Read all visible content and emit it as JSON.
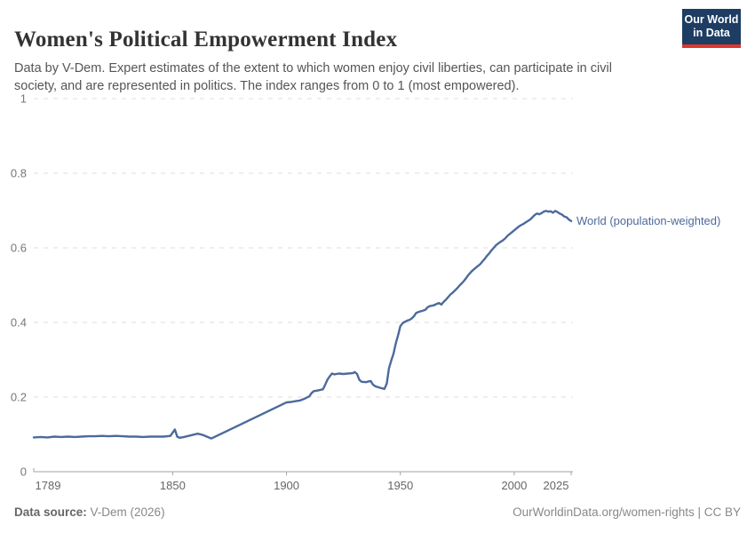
{
  "header": {
    "logo": {
      "line1": "Our World",
      "line2": "in Data"
    }
  },
  "footer": {
    "source_label": "Data source:",
    "source_value": " V-Dem (2026)",
    "credit": "OurWorldinData.org/women-rights | CC BY"
  },
  "colors": {
    "line": "#4C6A9C",
    "series_label": "#4C6A9C",
    "logo_bg": "#1d3d63",
    "logo_red": "#e0352b",
    "gridline": "#dcdcdc",
    "axis": "#a1a1a1"
  },
  "chart_data": {
    "type": "line",
    "title": "Women's Political Empowerment Index",
    "subtitle": "Data by V-Dem. Expert estimates of the extent to which women enjoy civil liberties, can participate in civil society, and are represented in politics. The index ranges from 0 to 1 (most empowered).",
    "xlabel": "",
    "ylabel": "",
    "xlim": [
      1789,
      2025
    ],
    "ylim": [
      0,
      1
    ],
    "xticks": [
      1789,
      1850,
      1900,
      1950,
      2000,
      2025
    ],
    "yticks": [
      0,
      0.2,
      0.4,
      0.6,
      0.8,
      1
    ],
    "grid": "horizontal-dashed",
    "legend_position": "end-of-line-label",
    "series": [
      {
        "name": "World (population-weighted)",
        "points": [
          [
            1789,
            0.092
          ],
          [
            1792,
            0.093
          ],
          [
            1795,
            0.092
          ],
          [
            1798,
            0.094
          ],
          [
            1801,
            0.093
          ],
          [
            1804,
            0.094
          ],
          [
            1807,
            0.093
          ],
          [
            1810,
            0.094
          ],
          [
            1813,
            0.095
          ],
          [
            1816,
            0.095
          ],
          [
            1819,
            0.096
          ],
          [
            1822,
            0.095
          ],
          [
            1825,
            0.096
          ],
          [
            1828,
            0.095
          ],
          [
            1831,
            0.094
          ],
          [
            1834,
            0.094
          ],
          [
            1837,
            0.093
          ],
          [
            1840,
            0.094
          ],
          [
            1843,
            0.094
          ],
          [
            1846,
            0.094
          ],
          [
            1849,
            0.096
          ],
          [
            1851,
            0.113
          ],
          [
            1852,
            0.094
          ],
          [
            1853,
            0.091
          ],
          [
            1855,
            0.093
          ],
          [
            1857,
            0.096
          ],
          [
            1859,
            0.099
          ],
          [
            1861,
            0.102
          ],
          [
            1863,
            0.099
          ],
          [
            1865,
            0.094
          ],
          [
            1867,
            0.089
          ],
          [
            1900,
            0.186
          ],
          [
            1902,
            0.187
          ],
          [
            1904,
            0.189
          ],
          [
            1906,
            0.191
          ],
          [
            1908,
            0.196
          ],
          [
            1910,
            0.202
          ],
          [
            1911,
            0.211
          ],
          [
            1912,
            0.216
          ],
          [
            1914,
            0.218
          ],
          [
            1916,
            0.221
          ],
          [
            1917,
            0.233
          ],
          [
            1918,
            0.247
          ],
          [
            1919,
            0.256
          ],
          [
            1920,
            0.263
          ],
          [
            1921,
            0.261
          ],
          [
            1923,
            0.263
          ],
          [
            1925,
            0.262
          ],
          [
            1927,
            0.263
          ],
          [
            1929,
            0.264
          ],
          [
            1930,
            0.267
          ],
          [
            1931,
            0.262
          ],
          [
            1932,
            0.246
          ],
          [
            1933,
            0.241
          ],
          [
            1935,
            0.24
          ],
          [
            1936,
            0.242
          ],
          [
            1937,
            0.243
          ],
          [
            1938,
            0.233
          ],
          [
            1939,
            0.229
          ],
          [
            1941,
            0.225
          ],
          [
            1943,
            0.222
          ],
          [
            1944,
            0.236
          ],
          [
            1945,
            0.277
          ],
          [
            1946,
            0.298
          ],
          [
            1947,
            0.316
          ],
          [
            1948,
            0.344
          ],
          [
            1949,
            0.366
          ],
          [
            1950,
            0.39
          ],
          [
            1951,
            0.398
          ],
          [
            1952,
            0.402
          ],
          [
            1953,
            0.405
          ],
          [
            1954,
            0.407
          ],
          [
            1955,
            0.411
          ],
          [
            1956,
            0.417
          ],
          [
            1957,
            0.426
          ],
          [
            1958,
            0.428
          ],
          [
            1959,
            0.43
          ],
          [
            1960,
            0.432
          ],
          [
            1961,
            0.434
          ],
          [
            1962,
            0.441
          ],
          [
            1963,
            0.444
          ],
          [
            1964,
            0.445
          ],
          [
            1965,
            0.447
          ],
          [
            1966,
            0.45
          ],
          [
            1967,
            0.452
          ],
          [
            1968,
            0.448
          ],
          [
            1969,
            0.455
          ],
          [
            1970,
            0.461
          ],
          [
            1971,
            0.468
          ],
          [
            1972,
            0.475
          ],
          [
            1973,
            0.48
          ],
          [
            1974,
            0.486
          ],
          [
            1975,
            0.492
          ],
          [
            1976,
            0.499
          ],
          [
            1977,
            0.505
          ],
          [
            1978,
            0.512
          ],
          [
            1979,
            0.52
          ],
          [
            1980,
            0.528
          ],
          [
            1981,
            0.535
          ],
          [
            1982,
            0.541
          ],
          [
            1983,
            0.546
          ],
          [
            1984,
            0.551
          ],
          [
            1985,
            0.556
          ],
          [
            1986,
            0.563
          ],
          [
            1987,
            0.57
          ],
          [
            1988,
            0.578
          ],
          [
            1989,
            0.585
          ],
          [
            1990,
            0.593
          ],
          [
            1991,
            0.6
          ],
          [
            1992,
            0.607
          ],
          [
            1993,
            0.612
          ],
          [
            1994,
            0.616
          ],
          [
            1995,
            0.62
          ],
          [
            1996,
            0.625
          ],
          [
            1997,
            0.632
          ],
          [
            1998,
            0.637
          ],
          [
            1999,
            0.642
          ],
          [
            2000,
            0.647
          ],
          [
            2001,
            0.652
          ],
          [
            2002,
            0.657
          ],
          [
            2003,
            0.661
          ],
          [
            2004,
            0.664
          ],
          [
            2005,
            0.668
          ],
          [
            2006,
            0.672
          ],
          [
            2007,
            0.676
          ],
          [
            2008,
            0.682
          ],
          [
            2009,
            0.688
          ],
          [
            2010,
            0.692
          ],
          [
            2011,
            0.69
          ],
          [
            2012,
            0.693
          ],
          [
            2013,
            0.697
          ],
          [
            2014,
            0.699
          ],
          [
            2015,
            0.697
          ],
          [
            2016,
            0.698
          ],
          [
            2017,
            0.694
          ],
          [
            2018,
            0.699
          ],
          [
            2019,
            0.696
          ],
          [
            2020,
            0.692
          ],
          [
            2021,
            0.689
          ],
          [
            2022,
            0.684
          ],
          [
            2023,
            0.682
          ],
          [
            2024,
            0.676
          ],
          [
            2025,
            0.672
          ]
        ]
      }
    ]
  }
}
